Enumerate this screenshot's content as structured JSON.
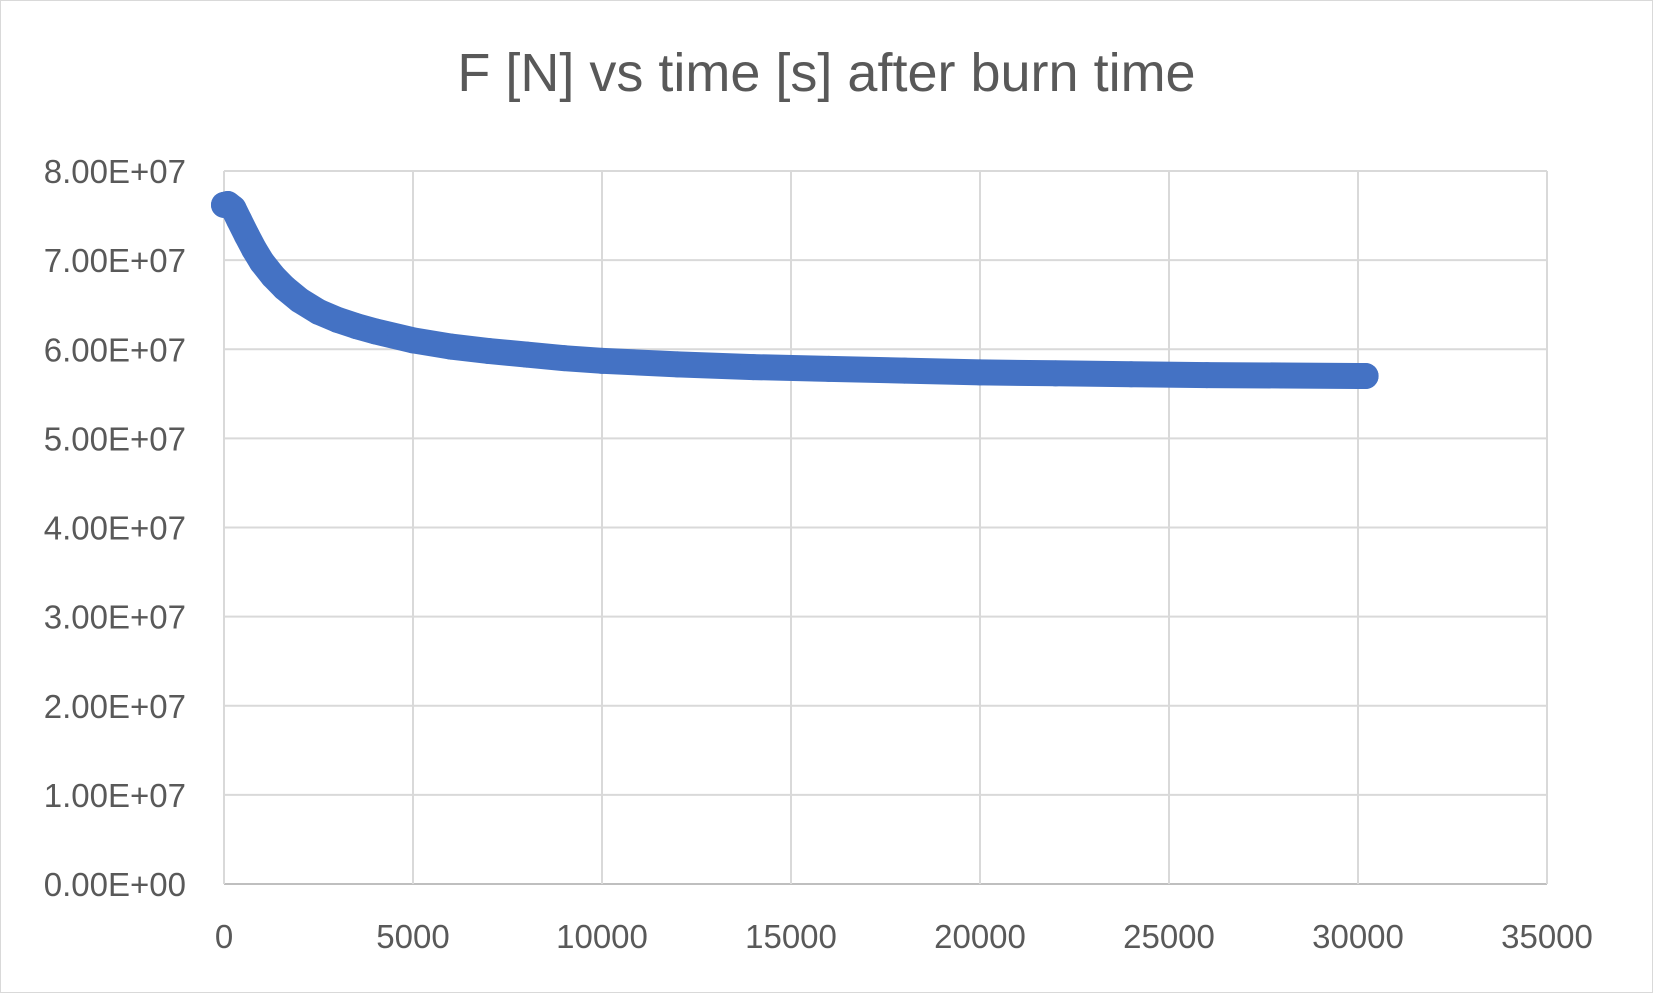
{
  "chart_data": {
    "type": "scatter",
    "title": "F [N] vs time [s] after burn time",
    "xlabel": "",
    "ylabel": "",
    "xlim": [
      0,
      35000
    ],
    "ylim": [
      0,
      80000000
    ],
    "x_ticks": [
      0,
      5000,
      10000,
      15000,
      20000,
      25000,
      30000,
      35000
    ],
    "x_tick_labels": [
      "0",
      "5000",
      "10000",
      "15000",
      "20000",
      "25000",
      "30000",
      "35000"
    ],
    "y_ticks": [
      0,
      10000000,
      20000000,
      30000000,
      40000000,
      50000000,
      60000000,
      70000000,
      80000000
    ],
    "y_tick_labels": [
      "0.00E+00",
      "1.00E+07",
      "2.00E+07",
      "3.00E+07",
      "4.00E+07",
      "5.00E+07",
      "6.00E+07",
      "7.00E+07",
      "8.00E+07"
    ],
    "grid": true,
    "legend": "none",
    "series_color": "#4472C4",
    "gridline_color": "#d9d9d9",
    "series": [
      {
        "x": [
          0,
          100,
          250,
          400,
          600,
          800,
          1000,
          1300,
          1600,
          2000,
          2500,
          3000,
          3500,
          4000,
          5000,
          6000,
          7000,
          8000,
          9000,
          10000,
          12000,
          14000,
          16000,
          18000,
          20000,
          22000,
          24000,
          26000,
          28000,
          30000,
          30200
        ],
        "y": [
          76200000,
          76300000,
          75800000,
          74500000,
          72800000,
          71200000,
          69800000,
          68200000,
          66900000,
          65500000,
          64200000,
          63300000,
          62600000,
          62000000,
          61000000,
          60300000,
          59800000,
          59400000,
          59000000,
          58700000,
          58300000,
          58000000,
          57800000,
          57600000,
          57400000,
          57300000,
          57200000,
          57100000,
          57050000,
          57000000,
          57000000
        ]
      }
    ]
  }
}
